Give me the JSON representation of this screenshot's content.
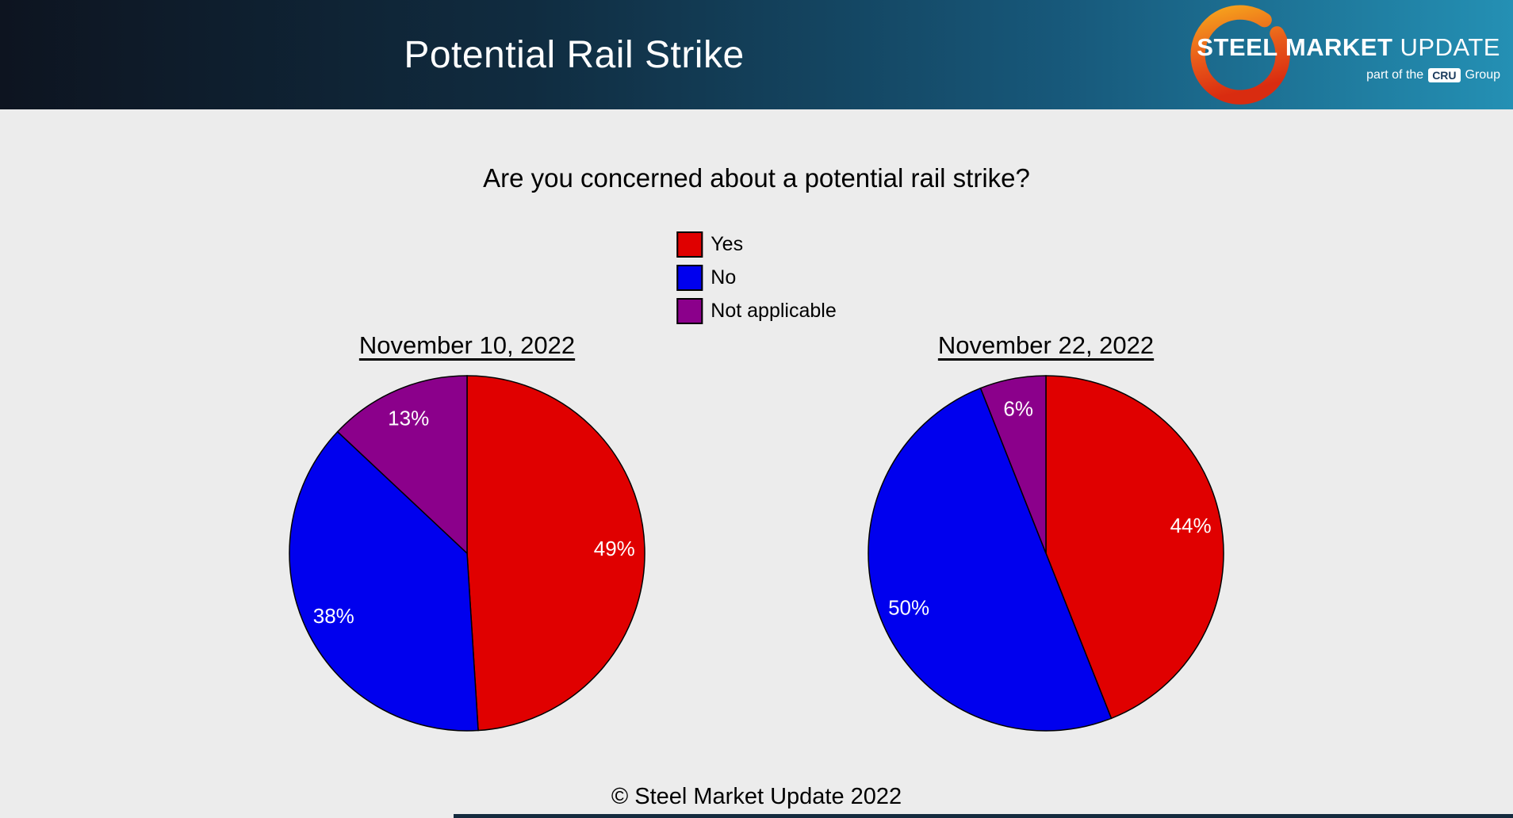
{
  "header": {
    "title": "Potential Rail Strike",
    "logo": {
      "steel": "STEEL",
      "market": "MARKET",
      "update": "UPDATE",
      "tagline_prefix": "part of the",
      "tagline_badge": "CRU",
      "tagline_suffix": "Group"
    }
  },
  "question": "Are you concerned about a potential rail strike?",
  "footer": "© Steel Market Update 2022",
  "colors": {
    "yes": "#e00000",
    "no": "#0000ee",
    "not_applicable": "#8B008B",
    "background": "#ececec",
    "header_gradient_start": "#0d1420",
    "header_gradient_end": "#2490b4"
  },
  "legend": {
    "items": [
      {
        "label": "Yes",
        "color": "#e00000"
      },
      {
        "label": "No",
        "color": "#0000ee"
      },
      {
        "label": "Not applicable",
        "color": "#8B008B"
      }
    ]
  },
  "chart_data": [
    {
      "type": "pie",
      "title": "November 10, 2022",
      "labels": [
        "Yes",
        "No",
        "Not applicable"
      ],
      "values": [
        49,
        38,
        13
      ],
      "data_labels": [
        "49%",
        "38%",
        "13%"
      ],
      "colors": [
        "#e00000",
        "#0000ee",
        "#8B008B"
      ],
      "start_angle_deg": 0,
      "direction": "clockwise",
      "label_color": "#ffffff",
      "legend_position": "top-center"
    },
    {
      "type": "pie",
      "title": "November 22, 2022",
      "labels": [
        "Yes",
        "No",
        "Not applicable"
      ],
      "values": [
        44,
        50,
        6
      ],
      "data_labels": [
        "44%",
        "50%",
        "6%"
      ],
      "colors": [
        "#e00000",
        "#0000ee",
        "#8B008B"
      ],
      "start_angle_deg": 0,
      "direction": "clockwise",
      "label_color": "#ffffff",
      "legend_position": "top-center"
    }
  ]
}
